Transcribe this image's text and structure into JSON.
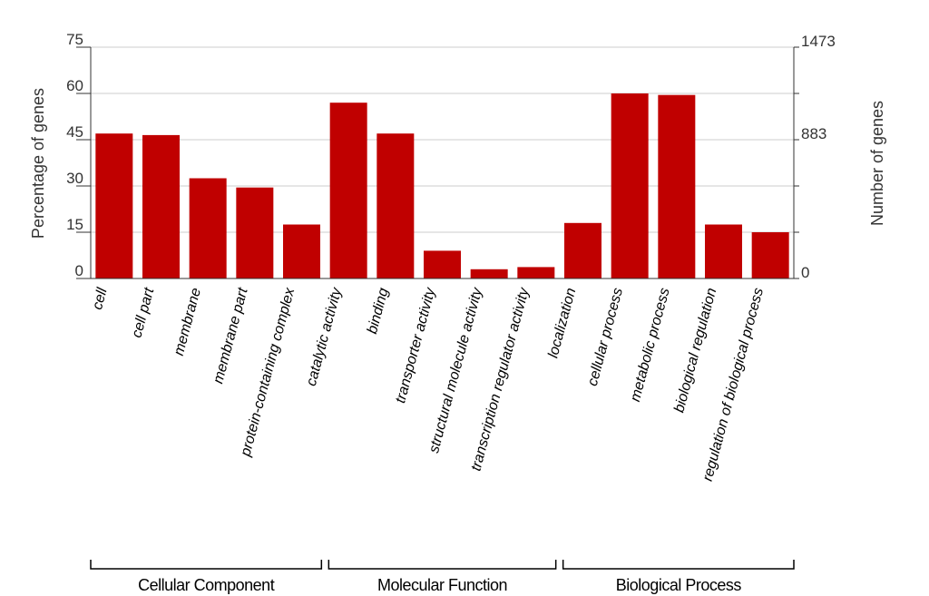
{
  "chart_data": {
    "type": "bar",
    "bar_color": "#c00000",
    "categories": [
      "cell",
      "cell part",
      "membrane",
      "membrane part",
      "protein-containing complex",
      "catalytic activity",
      "binding",
      "transporter activity",
      "structural molecule activity",
      "transcription regulator activity",
      "localization",
      "cellular process",
      "metabolic process",
      "biological regulation",
      "regulation of biological process"
    ],
    "values": [
      47,
      46.5,
      32.5,
      29.5,
      17.5,
      57,
      47,
      9,
      3,
      3.7,
      18,
      60,
      59.5,
      17.5,
      15
    ],
    "groups": [
      {
        "name": "Cellular Component",
        "start": 0,
        "end": 4
      },
      {
        "name": "Molecular Function",
        "start": 5,
        "end": 9
      },
      {
        "name": "Biological Process",
        "start": 10,
        "end": 14
      }
    ],
    "ylabel": "Percentage of genes",
    "ylabel_right": "Number of genes",
    "ylim": [
      0,
      75
    ],
    "yticks": [
      "0",
      "15",
      "30",
      "45",
      "60",
      "75"
    ],
    "yticks_right": [
      "0",
      "883",
      "1473"
    ],
    "grid": true
  }
}
